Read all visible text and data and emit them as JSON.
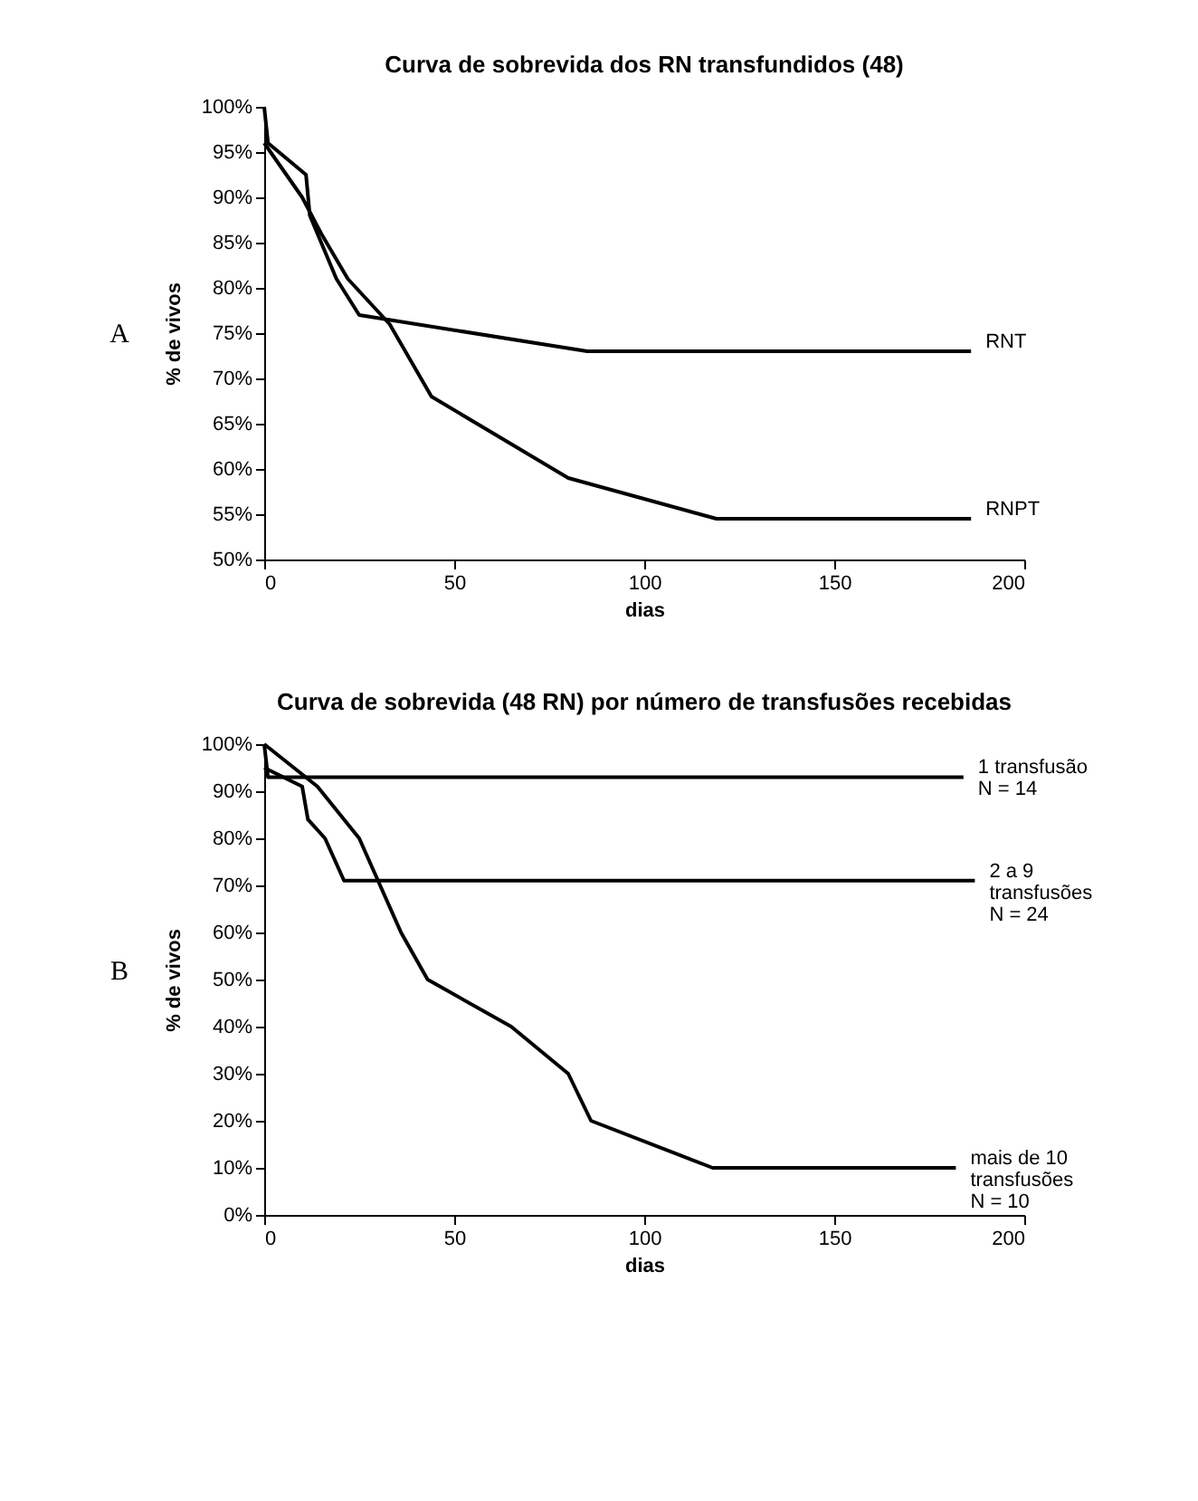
{
  "chart_data": [
    {
      "type": "line",
      "title": "Curva de sobrevida dos RN transfundidos (48)",
      "xlabel": "dias",
      "ylabel": "% de vivos",
      "annotations": [
        "A"
      ],
      "legend": false,
      "marker": "none",
      "line_style": "solid",
      "grid": false,
      "xlim": [
        0,
        200
      ],
      "xticks": [
        0,
        50,
        100,
        150,
        200
      ],
      "ylim": [
        50,
        100
      ],
      "yticks": [
        {
          "value": 50,
          "label": "50%"
        },
        {
          "value": 55,
          "label": "55%"
        },
        {
          "value": 60,
          "label": "60%"
        },
        {
          "value": 65,
          "label": "65%"
        },
        {
          "value": 70,
          "label": "70%"
        },
        {
          "value": 75,
          "label": "75%"
        },
        {
          "value": 80,
          "label": "80%"
        },
        {
          "value": 85,
          "label": "85%"
        },
        {
          "value": 90,
          "label": "90%"
        },
        {
          "value": 95,
          "label": "95%"
        },
        {
          "value": 100,
          "label": "100%"
        }
      ],
      "series": [
        {
          "name": "RNT",
          "color": "#000000",
          "x": [
            0,
            1,
            11,
            12,
            19,
            25,
            85,
            186
          ],
          "values": [
            100,
            96,
            92.5,
            88,
            81,
            77,
            73,
            73
          ]
        },
        {
          "name": "RNPT",
          "color": "#000000",
          "x": [
            0,
            10,
            15,
            22,
            33,
            44,
            60,
            80,
            119,
            186
          ],
          "values": [
            96,
            90,
            86,
            81,
            76,
            68,
            64,
            59,
            54.5,
            54.5
          ]
        }
      ]
    },
    {
      "type": "line",
      "title": "Curva de sobrevida (48 RN) por número de transfusões recebidas",
      "xlabel": "dias",
      "ylabel": "% de vivos",
      "annotations": [
        "B"
      ],
      "legend": false,
      "marker": "none",
      "line_style": "solid",
      "grid": false,
      "xlim": [
        0,
        200
      ],
      "xticks": [
        0,
        50,
        100,
        150,
        200
      ],
      "ylim": [
        0,
        100
      ],
      "yticks": [
        {
          "value": 0,
          "label": "0%"
        },
        {
          "value": 10,
          "label": "10%"
        },
        {
          "value": 20,
          "label": "20%"
        },
        {
          "value": 30,
          "label": "30%"
        },
        {
          "value": 40,
          "label": "40%"
        },
        {
          "value": 50,
          "label": "50%"
        },
        {
          "value": 60,
          "label": "60%"
        },
        {
          "value": 70,
          "label": "70%"
        },
        {
          "value": 80,
          "label": "80%"
        },
        {
          "value": 90,
          "label": "90%"
        },
        {
          "value": 100,
          "label": "100%"
        }
      ],
      "series": [
        {
          "name": "1 transfusão\nN = 14",
          "color": "#000000",
          "x": [
            0,
            1,
            184
          ],
          "values": [
            100,
            93,
            93
          ]
        },
        {
          "name": "2 a 9\ntransfusões\nN = 24",
          "color": "#000000",
          "x": [
            0,
            10,
            11.5,
            16,
            21,
            187
          ],
          "values": [
            95,
            91,
            84,
            80,
            71,
            71
          ]
        },
        {
          "name": "mais de 10\ntransfusões\nN = 10",
          "color": "#000000",
          "x": [
            0,
            14,
            25,
            36,
            43,
            65,
            80,
            86,
            118,
            182
          ],
          "values": [
            100,
            91,
            80,
            60,
            50,
            40,
            30,
            20,
            10,
            10
          ]
        }
      ]
    }
  ]
}
